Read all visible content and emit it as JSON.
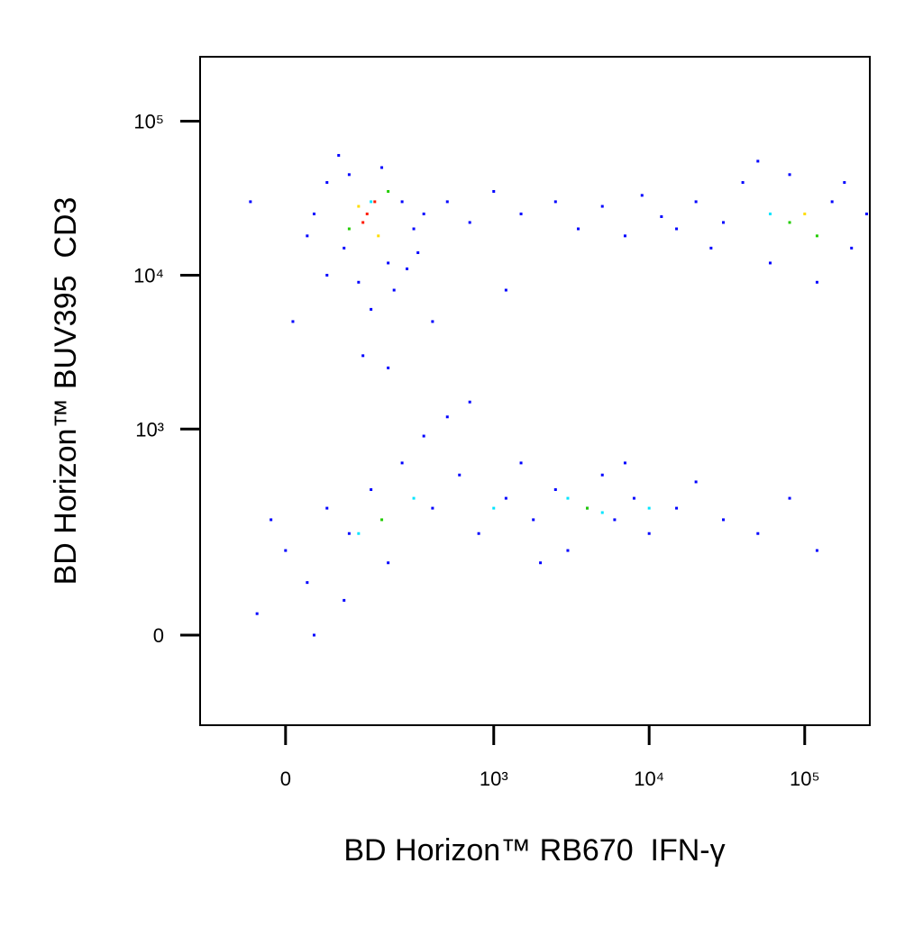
{
  "chart_data": {
    "type": "scatter",
    "xlabel": "BD Horizon™ RB670  IFN-γ",
    "ylabel": "BD Horizon™ BUV395  CD3",
    "xscale": "biexponential",
    "yscale": "biexponential",
    "xlim": [
      -150,
      262144
    ],
    "ylim": [
      -165,
      262144
    ],
    "xticks": [
      0,
      {
        "value": 1000,
        "label": "10³"
      },
      {
        "value": 10000,
        "label": "10⁴"
      },
      {
        "value": 100000,
        "label": "10⁵"
      }
    ],
    "yticks": [
      0,
      {
        "value": 1000,
        "label": "10³"
      },
      {
        "value": 10000,
        "label": "10⁴"
      },
      {
        "value": 100000,
        "label": "10⁵"
      }
    ],
    "series": [
      {
        "color": "#0000ff",
        "x": [
          60,
          90,
          200,
          250,
          40,
          120,
          180,
          300,
          80,
          220,
          150,
          30,
          350,
          100,
          270,
          60,
          130,
          200,
          10,
          -50,
          320,
          500,
          700,
          1000,
          1500,
          2500,
          3500,
          5000,
          7000,
          9000,
          12000,
          400,
          1200,
          20000,
          25000,
          40000,
          60000,
          80000,
          150000,
          200000,
          250000,
          30000,
          120000,
          50000,
          15000,
          180000,
          0,
          30,
          60,
          100,
          150,
          200,
          -20,
          250,
          400,
          600,
          800,
          1200,
          1800,
          2500,
          3000,
          4000,
          5000,
          6000,
          8000,
          10000,
          15000,
          20000,
          30000,
          50000,
          80000,
          120000,
          350,
          700,
          500,
          90,
          -40,
          40,
          1500,
          2000,
          7000
        ],
        "y": [
          40000,
          15000,
          12000,
          30000,
          25000,
          9000,
          50000,
          20000,
          60000,
          8000,
          6000,
          18000,
          25000,
          45000,
          11000,
          10000,
          3000,
          2500,
          5000,
          30000,
          14000,
          30000,
          22000,
          35000,
          25000,
          30000,
          20000,
          28000,
          18000,
          33000,
          24000,
          5000,
          8000,
          30000,
          15000,
          40000,
          12000,
          45000,
          30000,
          15000,
          25000,
          22000,
          9000,
          55000,
          20000,
          40000,
          150,
          80,
          300,
          200,
          400,
          120,
          250,
          600,
          300,
          500,
          200,
          350,
          250,
          400,
          150,
          300,
          500,
          250,
          350,
          200,
          300,
          450,
          250,
          200,
          350,
          150,
          900,
          1500,
          1200,
          50,
          30,
          0,
          600,
          120,
          600
        ]
      },
      {
        "color": "#00e5ff",
        "x": [
          120,
          300,
          1000,
          3000,
          5000,
          10000,
          150,
          60000
        ],
        "y": [
          200,
          350,
          300,
          350,
          280,
          300,
          30000,
          25000
        ]
      },
      {
        "color": "#22cc00",
        "x": [
          100,
          200,
          80000,
          120000,
          4000,
          180
        ],
        "y": [
          20000,
          35000,
          22000,
          18000,
          300,
          250
        ]
      },
      {
        "color": "#ffdd00",
        "x": [
          120,
          170,
          100000
        ],
        "y": [
          28000,
          18000,
          25000
        ]
      },
      {
        "color": "#ff1a00",
        "x": [
          140,
          160,
          130
        ],
        "y": [
          25000,
          30000,
          22000
        ]
      }
    ]
  }
}
